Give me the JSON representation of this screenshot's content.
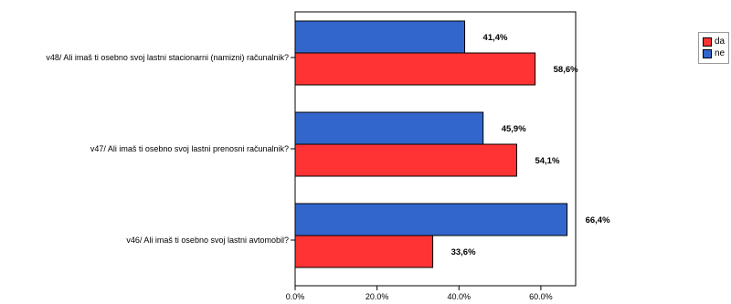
{
  "chart_data": {
    "type": "bar",
    "orientation": "horizontal",
    "categories": [
      "v48/ Ali imaš ti osebno svoj lastni stacionarni (namizni) računalnik?",
      "v47/ Ali imaš ti osebno svoj lastni prenosni računalnik?",
      "v46/ Ali imaš ti osebno svoj lastni avtomobil?"
    ],
    "series": [
      {
        "name": "ne",
        "color": "#3366cc",
        "values": [
          41.4,
          45.9,
          66.4
        ],
        "labels": [
          "41,4%",
          "45,9%",
          "66,4%"
        ]
      },
      {
        "name": "da",
        "color": "#ff3333",
        "values": [
          58.6,
          54.1,
          33.6
        ],
        "labels": [
          "58,6%",
          "54,1%",
          "33,6%"
        ]
      }
    ],
    "xlim": [
      0,
      68.5
    ],
    "xticks": [
      0,
      20,
      40,
      60
    ],
    "xtick_labels": [
      "0.0%",
      "20.0%",
      "40.0%",
      "60.0%"
    ],
    "legend_position": "top-right",
    "grid": false
  },
  "legend": {
    "items": [
      {
        "label": "da",
        "color": "#ff3333"
      },
      {
        "label": "ne",
        "color": "#3366cc"
      }
    ]
  }
}
